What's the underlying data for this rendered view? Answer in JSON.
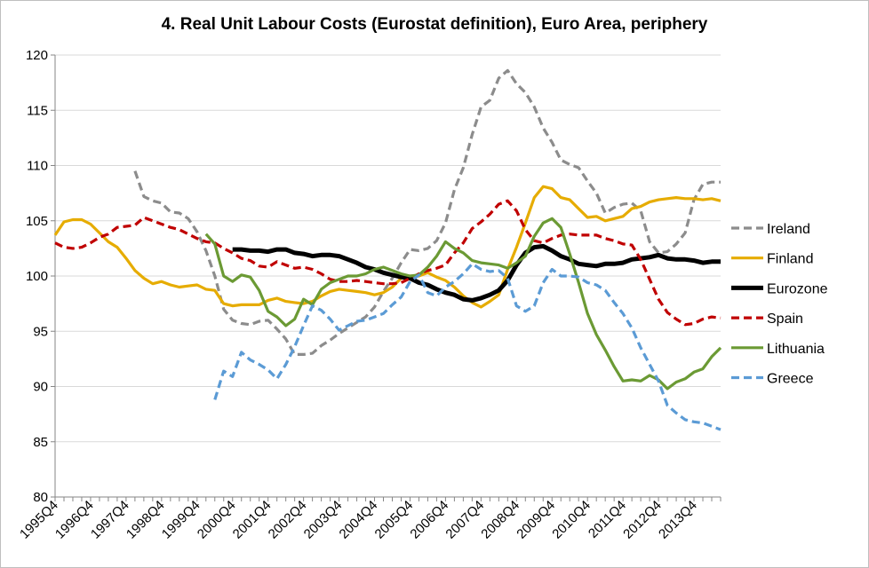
{
  "chart_data": {
    "type": "line",
    "title": "4. Real Unit Labour Costs (Eurostat definition), Euro Area, periphery",
    "xlabel": "",
    "ylabel": "",
    "ylim": [
      80,
      120
    ],
    "yticks": [
      80,
      85,
      90,
      95,
      100,
      105,
      110,
      115,
      120
    ],
    "x_range": [
      1995.75,
      2014.5
    ],
    "xtick_labels": [
      "1995Q4",
      "1996Q4",
      "1997Q4",
      "1998Q4",
      "1999Q4",
      "2000Q4",
      "2001Q4",
      "2002Q4",
      "2003Q4",
      "2004Q4",
      "2005Q4",
      "2006Q4",
      "2007Q4",
      "2008Q4",
      "2009Q4",
      "2010Q4",
      "2011Q4",
      "2012Q4",
      "2013Q4"
    ],
    "grid": "horizontal",
    "legend": "right",
    "series": [
      {
        "name": "Ireland",
        "color": "#8c8c8c",
        "dash": "dashed",
        "x": [
          1998.0,
          1998.25,
          1998.5,
          1998.75,
          1999.0,
          1999.25,
          1999.5,
          1999.75,
          2000.0,
          2000.25,
          2000.5,
          2000.75,
          2001.0,
          2001.25,
          2001.5,
          2001.75,
          2002.0,
          2002.25,
          2002.5,
          2002.75,
          2003.0,
          2003.25,
          2003.5,
          2003.75,
          2004.0,
          2004.25,
          2004.5,
          2004.75,
          2005.0,
          2005.25,
          2005.5,
          2005.75,
          2006.0,
          2006.25,
          2006.5,
          2006.75,
          2007.0,
          2007.25,
          2007.5,
          2007.75,
          2008.0,
          2008.25,
          2008.5,
          2008.75,
          2009.0,
          2009.25,
          2009.5,
          2009.75,
          2010.0,
          2010.25,
          2010.5,
          2010.75,
          2011.0,
          2011.25,
          2011.5,
          2011.75,
          2012.0,
          2012.25,
          2012.5,
          2012.75,
          2013.0,
          2013.25,
          2013.5,
          2013.75,
          2014.0,
          2014.25,
          2014.5
        ],
        "values": [
          109.5,
          107.2,
          106.8,
          106.6,
          105.8,
          105.7,
          105.2,
          104.0,
          102.3,
          100.0,
          97.0,
          96.0,
          95.7,
          95.6,
          95.9,
          96.0,
          95.2,
          94.3,
          92.9,
          92.9,
          93.0,
          93.7,
          94.2,
          94.8,
          95.3,
          95.8,
          96.3,
          97.2,
          98.6,
          99.8,
          101.2,
          102.4,
          102.3,
          102.5,
          103.2,
          104.8,
          107.8,
          109.8,
          112.8,
          115.3,
          115.9,
          117.9,
          118.6,
          117.4,
          116.6,
          115.3,
          113.4,
          112.1,
          110.5,
          110.1,
          109.8,
          108.6,
          107.5,
          105.7,
          106.2,
          106.5,
          106.6,
          105.9,
          103.1,
          102.1,
          102.2,
          102.9,
          103.9,
          106.9,
          108.3,
          108.5,
          108.5
        ]
      },
      {
        "name": "Finland",
        "color": "#e6ac00",
        "dash": "solid",
        "x": [
          1995.75,
          1996.0,
          1996.25,
          1996.5,
          1996.75,
          1997.0,
          1997.25,
          1997.5,
          1997.75,
          1998.0,
          1998.25,
          1998.5,
          1998.75,
          1999.0,
          1999.25,
          1999.5,
          1999.75,
          2000.0,
          2000.25,
          2000.5,
          2000.75,
          2001.0,
          2001.25,
          2001.5,
          2001.75,
          2002.0,
          2002.25,
          2002.5,
          2002.75,
          2003.0,
          2003.25,
          2003.5,
          2003.75,
          2004.0,
          2004.25,
          2004.5,
          2004.75,
          2005.0,
          2005.25,
          2005.5,
          2005.75,
          2006.0,
          2006.25,
          2006.5,
          2006.75,
          2007.0,
          2007.25,
          2007.5,
          2007.75,
          2008.0,
          2008.25,
          2008.5,
          2008.75,
          2009.0,
          2009.25,
          2009.5,
          2009.75,
          2010.0,
          2010.25,
          2010.5,
          2010.75,
          2011.0,
          2011.25,
          2011.5,
          2011.75,
          2012.0,
          2012.25,
          2012.5,
          2012.75,
          2013.0,
          2013.25,
          2013.5,
          2013.75,
          2014.0,
          2014.25,
          2014.5
        ],
        "values": [
          103.7,
          104.9,
          105.1,
          105.1,
          104.7,
          103.9,
          103.1,
          102.6,
          101.6,
          100.5,
          99.8,
          99.3,
          99.5,
          99.2,
          99.0,
          99.1,
          99.2,
          98.8,
          98.7,
          97.5,
          97.3,
          97.4,
          97.4,
          97.4,
          97.8,
          98.0,
          97.7,
          97.6,
          97.5,
          97.7,
          98.2,
          98.6,
          98.8,
          98.7,
          98.6,
          98.5,
          98.3,
          98.5,
          99.0,
          99.8,
          100.0,
          100.0,
          100.3,
          99.9,
          99.6,
          99.0,
          98.2,
          97.6,
          97.2,
          97.7,
          98.3,
          100.6,
          102.6,
          104.8,
          107.1,
          108.1,
          107.9,
          107.1,
          106.9,
          106.1,
          105.3,
          105.4,
          105.0,
          105.2,
          105.4,
          106.1,
          106.3,
          106.7,
          106.9,
          107.0,
          107.1,
          107.0,
          107.0,
          106.9,
          107.0,
          106.8
        ]
      },
      {
        "name": "Eurozone",
        "color": "#000000",
        "dash": "solid",
        "x": [
          2000.75,
          2001.0,
          2001.25,
          2001.5,
          2001.75,
          2002.0,
          2002.25,
          2002.5,
          2002.75,
          2003.0,
          2003.25,
          2003.5,
          2003.75,
          2004.0,
          2004.25,
          2004.5,
          2004.75,
          2005.0,
          2005.25,
          2005.5,
          2005.75,
          2006.0,
          2006.25,
          2006.5,
          2006.75,
          2007.0,
          2007.25,
          2007.5,
          2007.75,
          2008.0,
          2008.25,
          2008.5,
          2008.75,
          2009.0,
          2009.25,
          2009.5,
          2009.75,
          2010.0,
          2010.25,
          2010.5,
          2010.75,
          2011.0,
          2011.25,
          2011.5,
          2011.75,
          2012.0,
          2012.25,
          2012.5,
          2012.75,
          2013.0,
          2013.25,
          2013.5,
          2013.75,
          2014.0,
          2014.25,
          2014.5
        ],
        "values": [
          102.4,
          102.4,
          102.3,
          102.3,
          102.2,
          102.4,
          102.4,
          102.1,
          102.0,
          101.8,
          101.9,
          101.9,
          101.8,
          101.5,
          101.2,
          100.8,
          100.6,
          100.3,
          100.1,
          99.9,
          99.8,
          99.4,
          99.2,
          98.8,
          98.5,
          98.3,
          97.9,
          97.8,
          98.0,
          98.3,
          98.7,
          99.6,
          101.0,
          102.1,
          102.6,
          102.7,
          102.3,
          101.8,
          101.5,
          101.1,
          101.0,
          100.9,
          101.1,
          101.1,
          101.2,
          101.5,
          101.6,
          101.7,
          101.9,
          101.6,
          101.5,
          101.5,
          101.4,
          101.2,
          101.3,
          101.3
        ]
      },
      {
        "name": "Spain",
        "color": "#c00000",
        "dash": "dashed",
        "x": [
          1995.75,
          1996.0,
          1996.25,
          1996.5,
          1996.75,
          1997.0,
          1997.25,
          1997.5,
          1997.75,
          1998.0,
          1998.25,
          1998.5,
          1998.75,
          1999.0,
          1999.25,
          1999.5,
          1999.75,
          2000.0,
          2000.25,
          2000.5,
          2000.75,
          2001.0,
          2001.25,
          2001.5,
          2001.75,
          2002.0,
          2002.25,
          2002.5,
          2002.75,
          2003.0,
          2003.25,
          2003.5,
          2003.75,
          2004.0,
          2004.25,
          2004.5,
          2004.75,
          2005.0,
          2005.25,
          2005.5,
          2005.75,
          2006.0,
          2006.25,
          2006.5,
          2006.75,
          2007.0,
          2007.25,
          2007.5,
          2007.75,
          2008.0,
          2008.25,
          2008.5,
          2008.75,
          2009.0,
          2009.25,
          2009.5,
          2009.75,
          2010.0,
          2010.25,
          2010.5,
          2010.75,
          2011.0,
          2011.25,
          2011.5,
          2011.75,
          2012.0,
          2012.25,
          2012.5,
          2012.75,
          2013.0,
          2013.25,
          2013.5,
          2013.75,
          2014.0,
          2014.25,
          2014.5
        ],
        "values": [
          103.0,
          102.6,
          102.5,
          102.6,
          103.0,
          103.5,
          103.8,
          104.4,
          104.5,
          104.6,
          105.3,
          105.0,
          104.7,
          104.4,
          104.2,
          103.8,
          103.4,
          103.1,
          103.0,
          102.5,
          102.1,
          101.6,
          101.4,
          100.9,
          100.8,
          101.3,
          101.0,
          100.7,
          100.8,
          100.6,
          100.2,
          99.7,
          99.5,
          99.5,
          99.6,
          99.5,
          99.4,
          99.3,
          99.3,
          99.4,
          99.8,
          100.2,
          100.5,
          100.7,
          101.0,
          102.1,
          103.0,
          104.3,
          104.9,
          105.6,
          106.5,
          106.8,
          105.9,
          104.2,
          103.2,
          103.0,
          103.4,
          103.7,
          103.8,
          103.7,
          103.7,
          103.7,
          103.4,
          103.2,
          102.9,
          102.8,
          101.5,
          99.7,
          97.9,
          96.7,
          96.1,
          95.6,
          95.7,
          96.1,
          96.3,
          96.2
        ]
      },
      {
        "name": "Lithuania",
        "color": "#6b9a34",
        "dash": "solid",
        "x": [
          2000.0,
          2000.25,
          2000.5,
          2000.75,
          2001.0,
          2001.25,
          2001.5,
          2001.75,
          2002.0,
          2002.25,
          2002.5,
          2002.75,
          2003.0,
          2003.25,
          2003.5,
          2003.75,
          2004.0,
          2004.25,
          2004.5,
          2004.75,
          2005.0,
          2005.25,
          2005.5,
          2005.75,
          2006.0,
          2006.25,
          2006.5,
          2006.75,
          2007.0,
          2007.25,
          2007.5,
          2007.75,
          2008.0,
          2008.25,
          2008.5,
          2008.75,
          2009.0,
          2009.25,
          2009.5,
          2009.75,
          2010.0,
          2010.25,
          2010.5,
          2010.75,
          2011.0,
          2011.25,
          2011.5,
          2011.75,
          2012.0,
          2012.25,
          2012.5,
          2012.75,
          2013.0,
          2013.25,
          2013.5,
          2013.75,
          2014.0,
          2014.25,
          2014.5
        ],
        "values": [
          103.8,
          102.9,
          100.0,
          99.5,
          100.1,
          99.9,
          98.7,
          96.8,
          96.3,
          95.5,
          96.1,
          97.9,
          97.4,
          98.8,
          99.4,
          99.7,
          100.0,
          100.0,
          100.2,
          100.6,
          100.8,
          100.5,
          100.2,
          100.0,
          100.1,
          100.8,
          101.8,
          103.1,
          102.5,
          102.1,
          101.4,
          101.2,
          101.1,
          101.0,
          100.7,
          101.2,
          101.8,
          103.6,
          104.8,
          105.2,
          104.4,
          102.0,
          99.4,
          96.6,
          94.7,
          93.3,
          91.8,
          90.5,
          90.6,
          90.5,
          91.0,
          90.6,
          89.8,
          90.4,
          90.7,
          91.3,
          91.6,
          92.7,
          93.5
        ]
      },
      {
        "name": "Greece",
        "color": "#5b9bd5",
        "dash": "dashed",
        "x": [
          2000.25,
          2000.5,
          2000.75,
          2001.0,
          2001.25,
          2001.5,
          2001.75,
          2002.0,
          2002.25,
          2002.5,
          2002.75,
          2003.0,
          2003.25,
          2003.5,
          2003.75,
          2004.0,
          2004.25,
          2004.5,
          2004.75,
          2005.0,
          2005.25,
          2005.5,
          2005.75,
          2006.0,
          2006.25,
          2006.5,
          2006.75,
          2007.0,
          2007.25,
          2007.5,
          2007.75,
          2008.0,
          2008.25,
          2008.5,
          2008.75,
          2009.0,
          2009.25,
          2009.5,
          2009.75,
          2010.0,
          2010.25,
          2010.5,
          2010.75,
          2011.0,
          2011.25,
          2011.5,
          2011.75,
          2012.0,
          2012.25,
          2012.5,
          2012.75,
          2013.0,
          2013.25,
          2013.5,
          2013.75,
          2014.0,
          2014.25,
          2014.5
        ],
        "values": [
          88.8,
          91.4,
          90.9,
          93.1,
          92.4,
          92.0,
          91.5,
          90.7,
          92.0,
          93.6,
          95.5,
          97.3,
          96.9,
          96.1,
          95.1,
          95.5,
          95.9,
          96.0,
          96.3,
          96.6,
          97.4,
          98.1,
          99.5,
          100.1,
          98.5,
          98.2,
          99.0,
          99.5,
          100.2,
          101.1,
          100.6,
          100.4,
          100.5,
          99.8,
          97.3,
          96.8,
          97.3,
          99.4,
          100.6,
          100.0,
          100.0,
          99.9,
          99.4,
          99.2,
          98.7,
          97.6,
          96.6,
          95.3,
          93.5,
          92.0,
          90.5,
          88.3,
          87.6,
          87.0,
          86.8,
          86.7,
          86.4,
          86.1
        ]
      }
    ]
  }
}
